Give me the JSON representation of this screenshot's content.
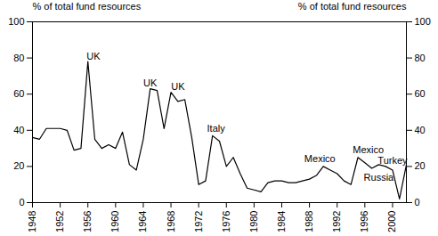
{
  "chart_data": {
    "type": "line",
    "ylabel": "% of total fund resources",
    "y2label": "% of total fund resources",
    "color": "#000000",
    "x": [
      1948,
      1949,
      1950,
      1951,
      1952,
      1953,
      1954,
      1955,
      1956,
      1957,
      1958,
      1959,
      1960,
      1961,
      1962,
      1963,
      1964,
      1965,
      1966,
      1967,
      1968,
      1969,
      1970,
      1971,
      1972,
      1973,
      1974,
      1975,
      1976,
      1977,
      1978,
      1979,
      1980,
      1981,
      1982,
      1983,
      1984,
      1985,
      1986,
      1987,
      1988,
      1989,
      1990,
      1991,
      1992,
      1993,
      1994,
      1995,
      1996,
      1997,
      1998,
      1999,
      2000,
      2001,
      2002
    ],
    "values": [
      36,
      35,
      41,
      41,
      41,
      40,
      29,
      30,
      78,
      35,
      30,
      32,
      30,
      39,
      21,
      18,
      35,
      63,
      62,
      41,
      61,
      56,
      57,
      36,
      10,
      12,
      37,
      34,
      20,
      25,
      16,
      8,
      7,
      6,
      11,
      12,
      12,
      11,
      11,
      12,
      13,
      15,
      20,
      18,
      16,
      12,
      10,
      25,
      22,
      19,
      21,
      20,
      18,
      2,
      21
    ],
    "xlim": [
      1948,
      2002
    ],
    "xticks": [
      1948,
      1952,
      1956,
      1960,
      1964,
      1968,
      1972,
      1976,
      1980,
      1984,
      1988,
      1992,
      1996,
      2000
    ],
    "ylim": [
      0,
      100
    ],
    "yticks": [
      0,
      20,
      40,
      60,
      80,
      100
    ],
    "y2lim": [
      0,
      100
    ],
    "y2ticks": [
      0,
      20,
      40,
      60,
      80,
      100
    ],
    "grid": false,
    "annotations": [
      {
        "text": "UK",
        "x": 1956.8,
        "y": 81
      },
      {
        "text": "UK",
        "x": 1965,
        "y": 66
      },
      {
        "text": "UK",
        "x": 1969,
        "y": 64
      },
      {
        "text": "Italy",
        "x": 1974.5,
        "y": 41
      },
      {
        "text": "Mexico",
        "x": 1989.5,
        "y": 24
      },
      {
        "text": "Mexico",
        "x": 1996.5,
        "y": 29
      },
      {
        "text": "Turkey",
        "x": 2000,
        "y": 23
      },
      {
        "text": "Russia",
        "x": 1998,
        "y": 14
      }
    ]
  }
}
